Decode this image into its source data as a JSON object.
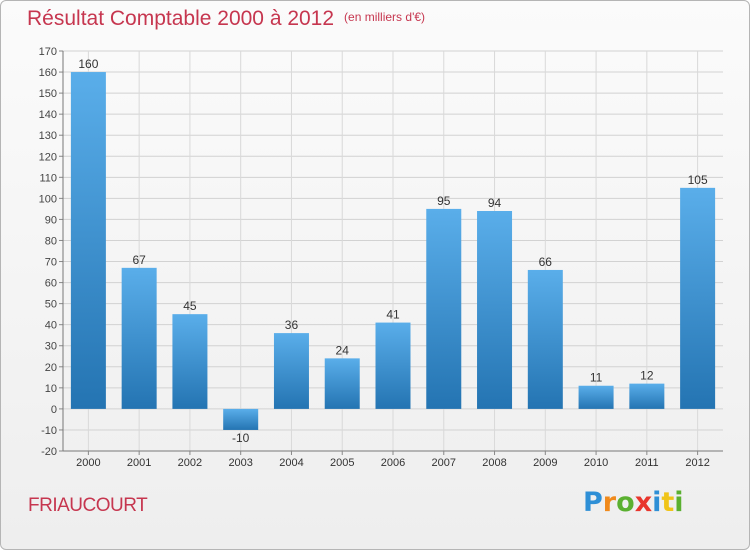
{
  "header": {
    "title": "Résultat Comptable 2000 à 2012",
    "unit": "(en milliers d'€)"
  },
  "footer": {
    "place": "FRIAUCOURT",
    "logo": {
      "letters": [
        "P",
        "r",
        "o",
        "x",
        "i",
        "t",
        "i"
      ],
      "colors": [
        "#2e8fd6",
        "#f08a1c",
        "#5ab030",
        "#e8352c",
        "#2e8fd6",
        "#f0c419",
        "#5ab030"
      ]
    }
  },
  "colors": {
    "bar_top": "#5aaeea",
    "bar_bottom": "#2474b2",
    "title": "#c6364f"
  },
  "chart_data": {
    "type": "bar",
    "title": "Résultat Comptable 2000 à 2012",
    "categories": [
      "2000",
      "2001",
      "2002",
      "2003",
      "2004",
      "2005",
      "2006",
      "2007",
      "2008",
      "2009",
      "2010",
      "2011",
      "2012"
    ],
    "values": [
      160,
      67,
      45,
      -10,
      36,
      24,
      41,
      95,
      94,
      66,
      11,
      12,
      105
    ],
    "value_labels": [
      "160",
      "67",
      "45",
      "-10",
      "36",
      "24",
      "41",
      "95",
      "94",
      "66",
      "11",
      "12",
      "105"
    ],
    "ylim": [
      -20,
      170
    ],
    "yticks": [
      -20,
      -10,
      0,
      10,
      20,
      30,
      40,
      50,
      60,
      70,
      80,
      90,
      100,
      110,
      120,
      130,
      140,
      150,
      160,
      170
    ],
    "grid": true,
    "xlabel": "",
    "ylabel": ""
  }
}
